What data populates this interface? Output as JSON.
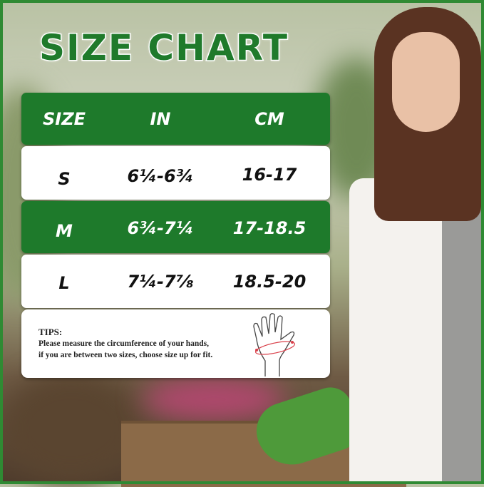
{
  "title": "SIZE CHART",
  "table": {
    "headers": [
      "SIZE",
      "IN",
      "CM"
    ],
    "rows": [
      {
        "size": "S",
        "in": "6¼-6¾",
        "cm": "16-17"
      },
      {
        "size": "M",
        "in": "6¾-7¼",
        "cm": "17-18.5"
      },
      {
        "size": "L",
        "in": "7¼-7⅞",
        "cm": "18.5-20"
      }
    ]
  },
  "tips": {
    "title": "TIPS:",
    "line1": "Please measure the circumference of your hands,",
    "line2": "if you are between two sizes, choose size up for fit.",
    "icon": "hand-measure-icon"
  },
  "colors": {
    "brand_green": "#1e7a2b",
    "frame": "#2f8a33"
  }
}
